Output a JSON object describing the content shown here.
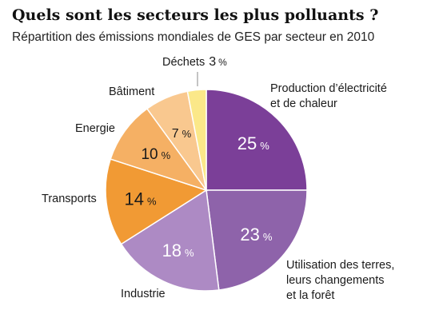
{
  "chart_data": {
    "type": "pie",
    "title": "Quels sont les secteurs les plus polluants ?",
    "subtitle": "Répartition des émissions mondiales de GES par secteur en 2010",
    "unit": "%",
    "slices": [
      {
        "label_lines": [
          "Production d’électricité",
          "et de chaleur"
        ],
        "value": 25,
        "color": "#7b3f98"
      },
      {
        "label_lines": [
          "Utilisation des terres,",
          "leurs changements",
          "et la forêt"
        ],
        "value": 23,
        "color": "#8e63aa"
      },
      {
        "label_lines": [
          "Industrie"
        ],
        "value": 18,
        "color": "#ad8ac4"
      },
      {
        "label_lines": [
          "Transports"
        ],
        "value": 14,
        "color": "#f19a34"
      },
      {
        "label_lines": [
          "Energie"
        ],
        "value": 10,
        "color": "#f5b064"
      },
      {
        "label_lines": [
          "Bâtiment"
        ],
        "value": 7,
        "color": "#f9c88f"
      },
      {
        "label_lines": [
          "Déchets"
        ],
        "value": 3,
        "color": "#fbe889"
      }
    ]
  }
}
